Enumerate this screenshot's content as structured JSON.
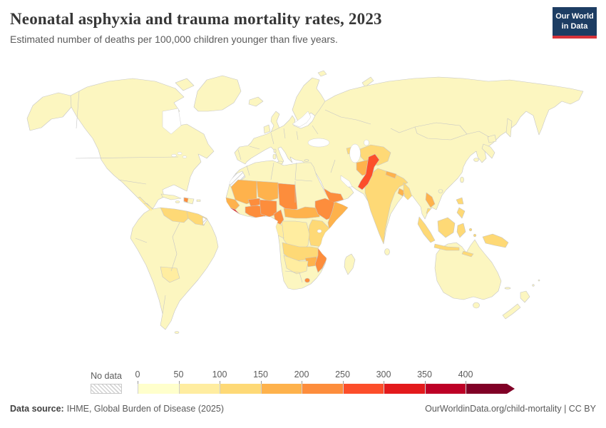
{
  "header": {
    "title": "Neonatal asphyxia and trauma mortality rates, 2023",
    "subtitle": "Estimated number of deaths per 100,000 children younger than five years.",
    "logo": {
      "line1": "Our World",
      "line2": "in Data",
      "bg_color": "#1d3d63",
      "accent_color": "#d8333a"
    }
  },
  "legend": {
    "no_data_label": "No data"
  },
  "footer": {
    "source_label": "Data source:",
    "source_text": "IHME, Global Burden of Disease (2025)",
    "attribution": "OurWorldinData.org/child-mortality | CC BY"
  },
  "chart_data": {
    "type": "choropleth",
    "title": "Neonatal asphyxia and trauma mortality rates, 2023",
    "unit": "Estimated deaths per 100,000 children younger than five years",
    "year": 2023,
    "legend_position": "bottom",
    "no_data_style": "diagonal-hatch",
    "color_scale": {
      "open_ended_arrow": true,
      "bins": [
        {
          "label": "0",
          "range": "0–50",
          "color": "#ffffcc"
        },
        {
          "label": "50",
          "range": "50–100",
          "color": "#ffeda0"
        },
        {
          "label": "100",
          "range": "100–150",
          "color": "#fed976"
        },
        {
          "label": "150",
          "range": "150–200",
          "color": "#feb24c"
        },
        {
          "label": "200",
          "range": "200–250",
          "color": "#fd8d3c"
        },
        {
          "label": "250",
          "range": "250–300",
          "color": "#fc4e2a"
        },
        {
          "label": "300",
          "range": "300–350",
          "color": "#e31a1c"
        },
        {
          "label": "350",
          "range": "350–400",
          "color": "#bd0026"
        },
        {
          "label": "400",
          "range": "400+",
          "color": "#800026"
        }
      ]
    },
    "map_style": {
      "ocean_color": "#ffffff",
      "border_color": "#c6c6c6",
      "base_color": "#fcf6c0"
    },
    "regions": {
      "default": {
        "name": "Most of the Americas, Europe, Northern & Eastern Asia, Oceania",
        "value_range": "0–50",
        "color": "#fcf6c0"
      },
      "central_america": {
        "name": "Central America",
        "value_range": "50–100",
        "color": "#ffeda0"
      },
      "haiti": {
        "name": "Haiti",
        "value_range": "200–250",
        "color": "#fd8d3c"
      },
      "venezuela": {
        "name": "Venezuela",
        "value_range": "100–150",
        "color": "#fed976"
      },
      "guyana_suriname": {
        "name": "Guyana & Suriname",
        "value_range": "100–150",
        "color": "#fed976"
      },
      "french_guiana": {
        "name": "French Guiana",
        "value_range": "No data",
        "color": "hatch"
      },
      "bolivia": {
        "name": "Bolivia",
        "value_range": "50–100",
        "color": "#ffeda0"
      },
      "western_sahara": {
        "name": "Western Sahara",
        "value_range": "No data",
        "color": "hatch"
      },
      "mauritania_mali_niger": {
        "name": "Mauritania, Mali & Niger",
        "value_range": "150–200",
        "color": "#feb24c"
      },
      "senegal_guinea": {
        "name": "Senegal, Gambia & Guinea",
        "value_range": "150–200",
        "color": "#feb24c"
      },
      "sierra_leone_liberia": {
        "name": "Sierra Leone & Liberia",
        "value_range": "300–350",
        "color": "#e31a1c"
      },
      "ivory_coast_ghana": {
        "name": "Côte d'Ivoire, Ghana, Togo & Benin",
        "value_range": "200–250",
        "color": "#fd8d3c"
      },
      "burkina_faso": {
        "name": "Burkina Faso",
        "value_range": "200–250",
        "color": "#fd8d3c"
      },
      "nigeria": {
        "name": "Nigeria",
        "value_range": "200–250",
        "color": "#fd8d3c"
      },
      "chad": {
        "name": "Chad",
        "value_range": "200–250",
        "color": "#fd8d3c"
      },
      "cameroon": {
        "name": "Cameroon",
        "value_range": "200–250",
        "color": "#fd8d3c"
      },
      "car_south_sudan": {
        "name": "Central African Republic & South Sudan",
        "value_range": "150–200",
        "color": "#feb24c"
      },
      "ethiopia": {
        "name": "Ethiopia",
        "value_range": "200–250",
        "color": "#fd8d3c"
      },
      "somalia": {
        "name": "Somalia",
        "value_range": "150–200",
        "color": "#feb24c"
      },
      "uganda_kenya_tanzania": {
        "name": "Uganda, Kenya & Tanzania",
        "value_range": "100–150",
        "color": "#fed976"
      },
      "drc": {
        "name": "Democratic Republic of Congo",
        "value_range": "50–100",
        "color": "#ffeda0"
      },
      "gabon_congo": {
        "name": "Gabon & Congo",
        "value_range": "50–100",
        "color": "#ffeda0"
      },
      "angola_zambia": {
        "name": "Angola & Zambia",
        "value_range": "100–150",
        "color": "#fed976"
      },
      "zimbabwe": {
        "name": "Zimbabwe",
        "value_range": "150–200",
        "color": "#feb24c"
      },
      "mozambique": {
        "name": "Mozambique",
        "value_range": "200–250",
        "color": "#fd8d3c"
      },
      "namibia_botswana": {
        "name": "Namibia & Botswana",
        "value_range": "50–100",
        "color": "#ffeda0"
      },
      "lesotho": {
        "name": "Lesotho",
        "value_range": "200–250",
        "color": "#fd8d3c"
      },
      "yemen": {
        "name": "Yemen",
        "value_range": "200–250",
        "color": "#fd8d3c"
      },
      "azerbaijan": {
        "name": "Azerbaijan",
        "value_range": "100–150",
        "color": "#fed976"
      },
      "central_asia": {
        "name": "Turkmenistan, Uzbekistan & Tajikistan",
        "value_range": "100–150",
        "color": "#fed976"
      },
      "afghanistan": {
        "name": "Afghanistan",
        "value_range": "150–200",
        "color": "#feb24c"
      },
      "pakistan": {
        "name": "Pakistan",
        "value_range": "250–300",
        "color": "#fc4e2a"
      },
      "india": {
        "name": "India",
        "value_range": "100–150",
        "color": "#fed976"
      },
      "nepal": {
        "name": "Nepal",
        "value_range": "150–200",
        "color": "#feb24c"
      },
      "bangladesh": {
        "name": "Bangladesh",
        "value_range": "150–200",
        "color": "#feb24c"
      },
      "myanmar": {
        "name": "Myanmar",
        "value_range": "100–150",
        "color": "#fed976"
      },
      "laos": {
        "name": "Laos",
        "value_range": "150–200",
        "color": "#feb24c"
      },
      "cambodia": {
        "name": "Cambodia",
        "value_range": "100–150",
        "color": "#fed976"
      },
      "philippines": {
        "name": "Philippines",
        "value_range": "100–150",
        "color": "#fed976"
      },
      "indonesia": {
        "name": "Indonesia",
        "value_range": "100–150",
        "color": "#fed976"
      },
      "papua_new_guinea": {
        "name": "Papua New Guinea",
        "value_range": "100–150",
        "color": "#fed976"
      }
    }
  }
}
